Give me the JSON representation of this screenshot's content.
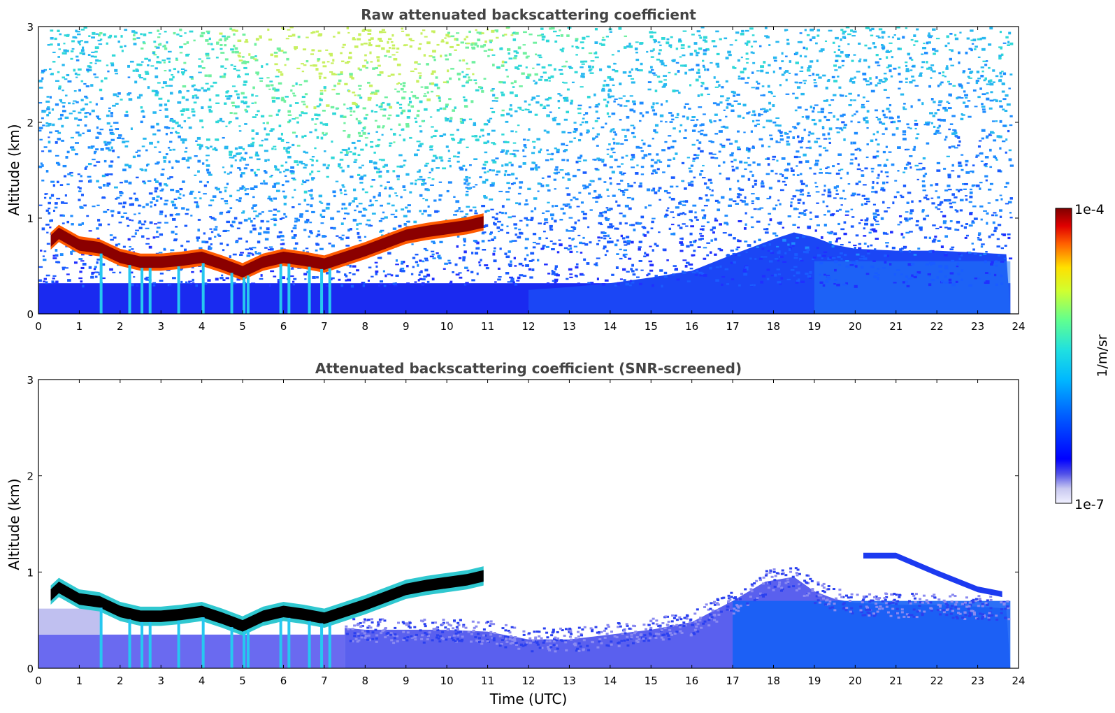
{
  "colors": {
    "cloud_core": "#8b0000",
    "cloud_core_screened": "#000000",
    "noise_low": "#1535f0",
    "background": "#ffffff"
  },
  "chart_data": [
    {
      "type": "heatmap",
      "title": "Raw attenuated backscattering coefficient",
      "xlabel": "",
      "ylabel": "Altitude (km)",
      "xlim": [
        0,
        24
      ],
      "ylim": [
        0,
        3
      ],
      "x_ticks": [
        "0",
        "1",
        "2",
        "3",
        "4",
        "5",
        "6",
        "7",
        "8",
        "9",
        "10",
        "11",
        "12",
        "13",
        "14",
        "15",
        "16",
        "17",
        "18",
        "19",
        "20",
        "21",
        "22",
        "23",
        "24"
      ],
      "y_ticks": [
        "0",
        "1",
        "2",
        "3"
      ],
      "data_end_time": 23.8,
      "cloud_base_km": [
        [
          0.3,
          0.72
        ],
        [
          0.5,
          0.8
        ],
        [
          1.0,
          0.68
        ],
        [
          1.5,
          0.65
        ],
        [
          2.0,
          0.55
        ],
        [
          2.5,
          0.5
        ],
        [
          3.0,
          0.5
        ],
        [
          3.5,
          0.52
        ],
        [
          4.0,
          0.55
        ],
        [
          4.5,
          0.48
        ],
        [
          5.0,
          0.4
        ],
        [
          5.5,
          0.5
        ],
        [
          6.0,
          0.55
        ],
        [
          6.5,
          0.52
        ],
        [
          7.0,
          0.48
        ],
        [
          7.5,
          0.55
        ],
        [
          8.0,
          0.62
        ],
        [
          8.5,
          0.7
        ],
        [
          9.0,
          0.78
        ],
        [
          9.5,
          0.82
        ],
        [
          10.0,
          0.85
        ],
        [
          10.5,
          0.88
        ],
        [
          10.9,
          0.92
        ]
      ],
      "boundary_layer_top_km": [
        [
          12,
          0.25
        ],
        [
          13,
          0.28
        ],
        [
          14,
          0.32
        ],
        [
          15,
          0.38
        ],
        [
          16,
          0.45
        ],
        [
          17,
          0.62
        ],
        [
          18,
          0.78
        ],
        [
          18.5,
          0.85
        ],
        [
          19,
          0.8
        ],
        [
          19.5,
          0.72
        ],
        [
          20,
          0.68
        ],
        [
          21,
          0.66
        ],
        [
          22,
          0.66
        ],
        [
          23,
          0.64
        ],
        [
          23.8,
          0.62
        ]
      ]
    },
    {
      "type": "heatmap",
      "title": "Attenuated backscattering coefficient (SNR-screened)",
      "xlabel": "Time (UTC)",
      "ylabel": "Altitude (km)",
      "xlim": [
        0,
        24
      ],
      "ylim": [
        0,
        3
      ],
      "x_ticks": [
        "0",
        "1",
        "2",
        "3",
        "4",
        "5",
        "6",
        "7",
        "8",
        "9",
        "10",
        "11",
        "12",
        "13",
        "14",
        "15",
        "16",
        "17",
        "18",
        "19",
        "20",
        "21",
        "22",
        "23",
        "24"
      ],
      "y_ticks": [
        "0",
        "1",
        "2",
        "3"
      ],
      "data_end_time": 23.8,
      "boundary_layer_top_km": [
        [
          7.5,
          0.42
        ],
        [
          8,
          0.4
        ],
        [
          9,
          0.4
        ],
        [
          10,
          0.4
        ],
        [
          11,
          0.38
        ],
        [
          12,
          0.3
        ],
        [
          13,
          0.3
        ],
        [
          14,
          0.35
        ],
        [
          15,
          0.4
        ],
        [
          16,
          0.48
        ],
        [
          17,
          0.7
        ],
        [
          17.8,
          0.9
        ],
        [
          18.5,
          0.95
        ],
        [
          19,
          0.8
        ],
        [
          19.5,
          0.72
        ],
        [
          20,
          0.68
        ],
        [
          21,
          0.66
        ],
        [
          22,
          0.66
        ],
        [
          23,
          0.64
        ],
        [
          23.8,
          0.62
        ]
      ],
      "elevated_layer_km": [
        [
          20.2,
          1.2
        ],
        [
          21,
          1.2
        ],
        [
          22,
          1.02
        ],
        [
          23,
          0.85
        ],
        [
          23.6,
          0.8
        ]
      ]
    }
  ],
  "colorbar": {
    "label": "1/m/sr",
    "max_label": "1e-4",
    "min_label": "1e-7",
    "scale": "log",
    "colormap": "jet"
  }
}
